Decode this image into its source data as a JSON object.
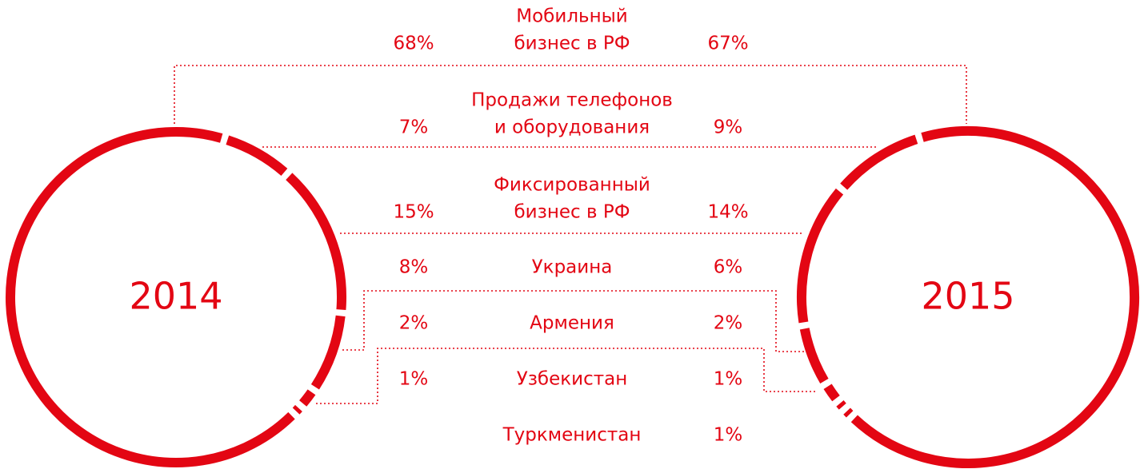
{
  "chart_data": {
    "type": "donut",
    "categories": [
      [
        "Мобильный",
        "бизнес в РФ"
      ],
      [
        "Продажи телефонов",
        "и оборудования"
      ],
      [
        "Фиксированный",
        "бизнес в РФ"
      ],
      [
        "Украина"
      ],
      [
        "Армения"
      ],
      [
        "Узбекистан"
      ],
      [
        "Туркменистан"
      ]
    ],
    "color": "#e30613",
    "series": [
      {
        "name": "2014",
        "values": [
          68,
          7,
          15,
          8,
          2,
          1,
          null
        ],
        "value_labels": [
          "68%",
          "7%",
          "15%",
          "8%",
          "2%",
          "1%",
          null
        ]
      },
      {
        "name": "2015",
        "values": [
          67,
          9,
          14,
          6,
          2,
          1,
          1
        ],
        "value_labels": [
          "67%",
          "9%",
          "14%",
          "6%",
          "2%",
          "1%",
          "1%"
        ]
      }
    ]
  }
}
